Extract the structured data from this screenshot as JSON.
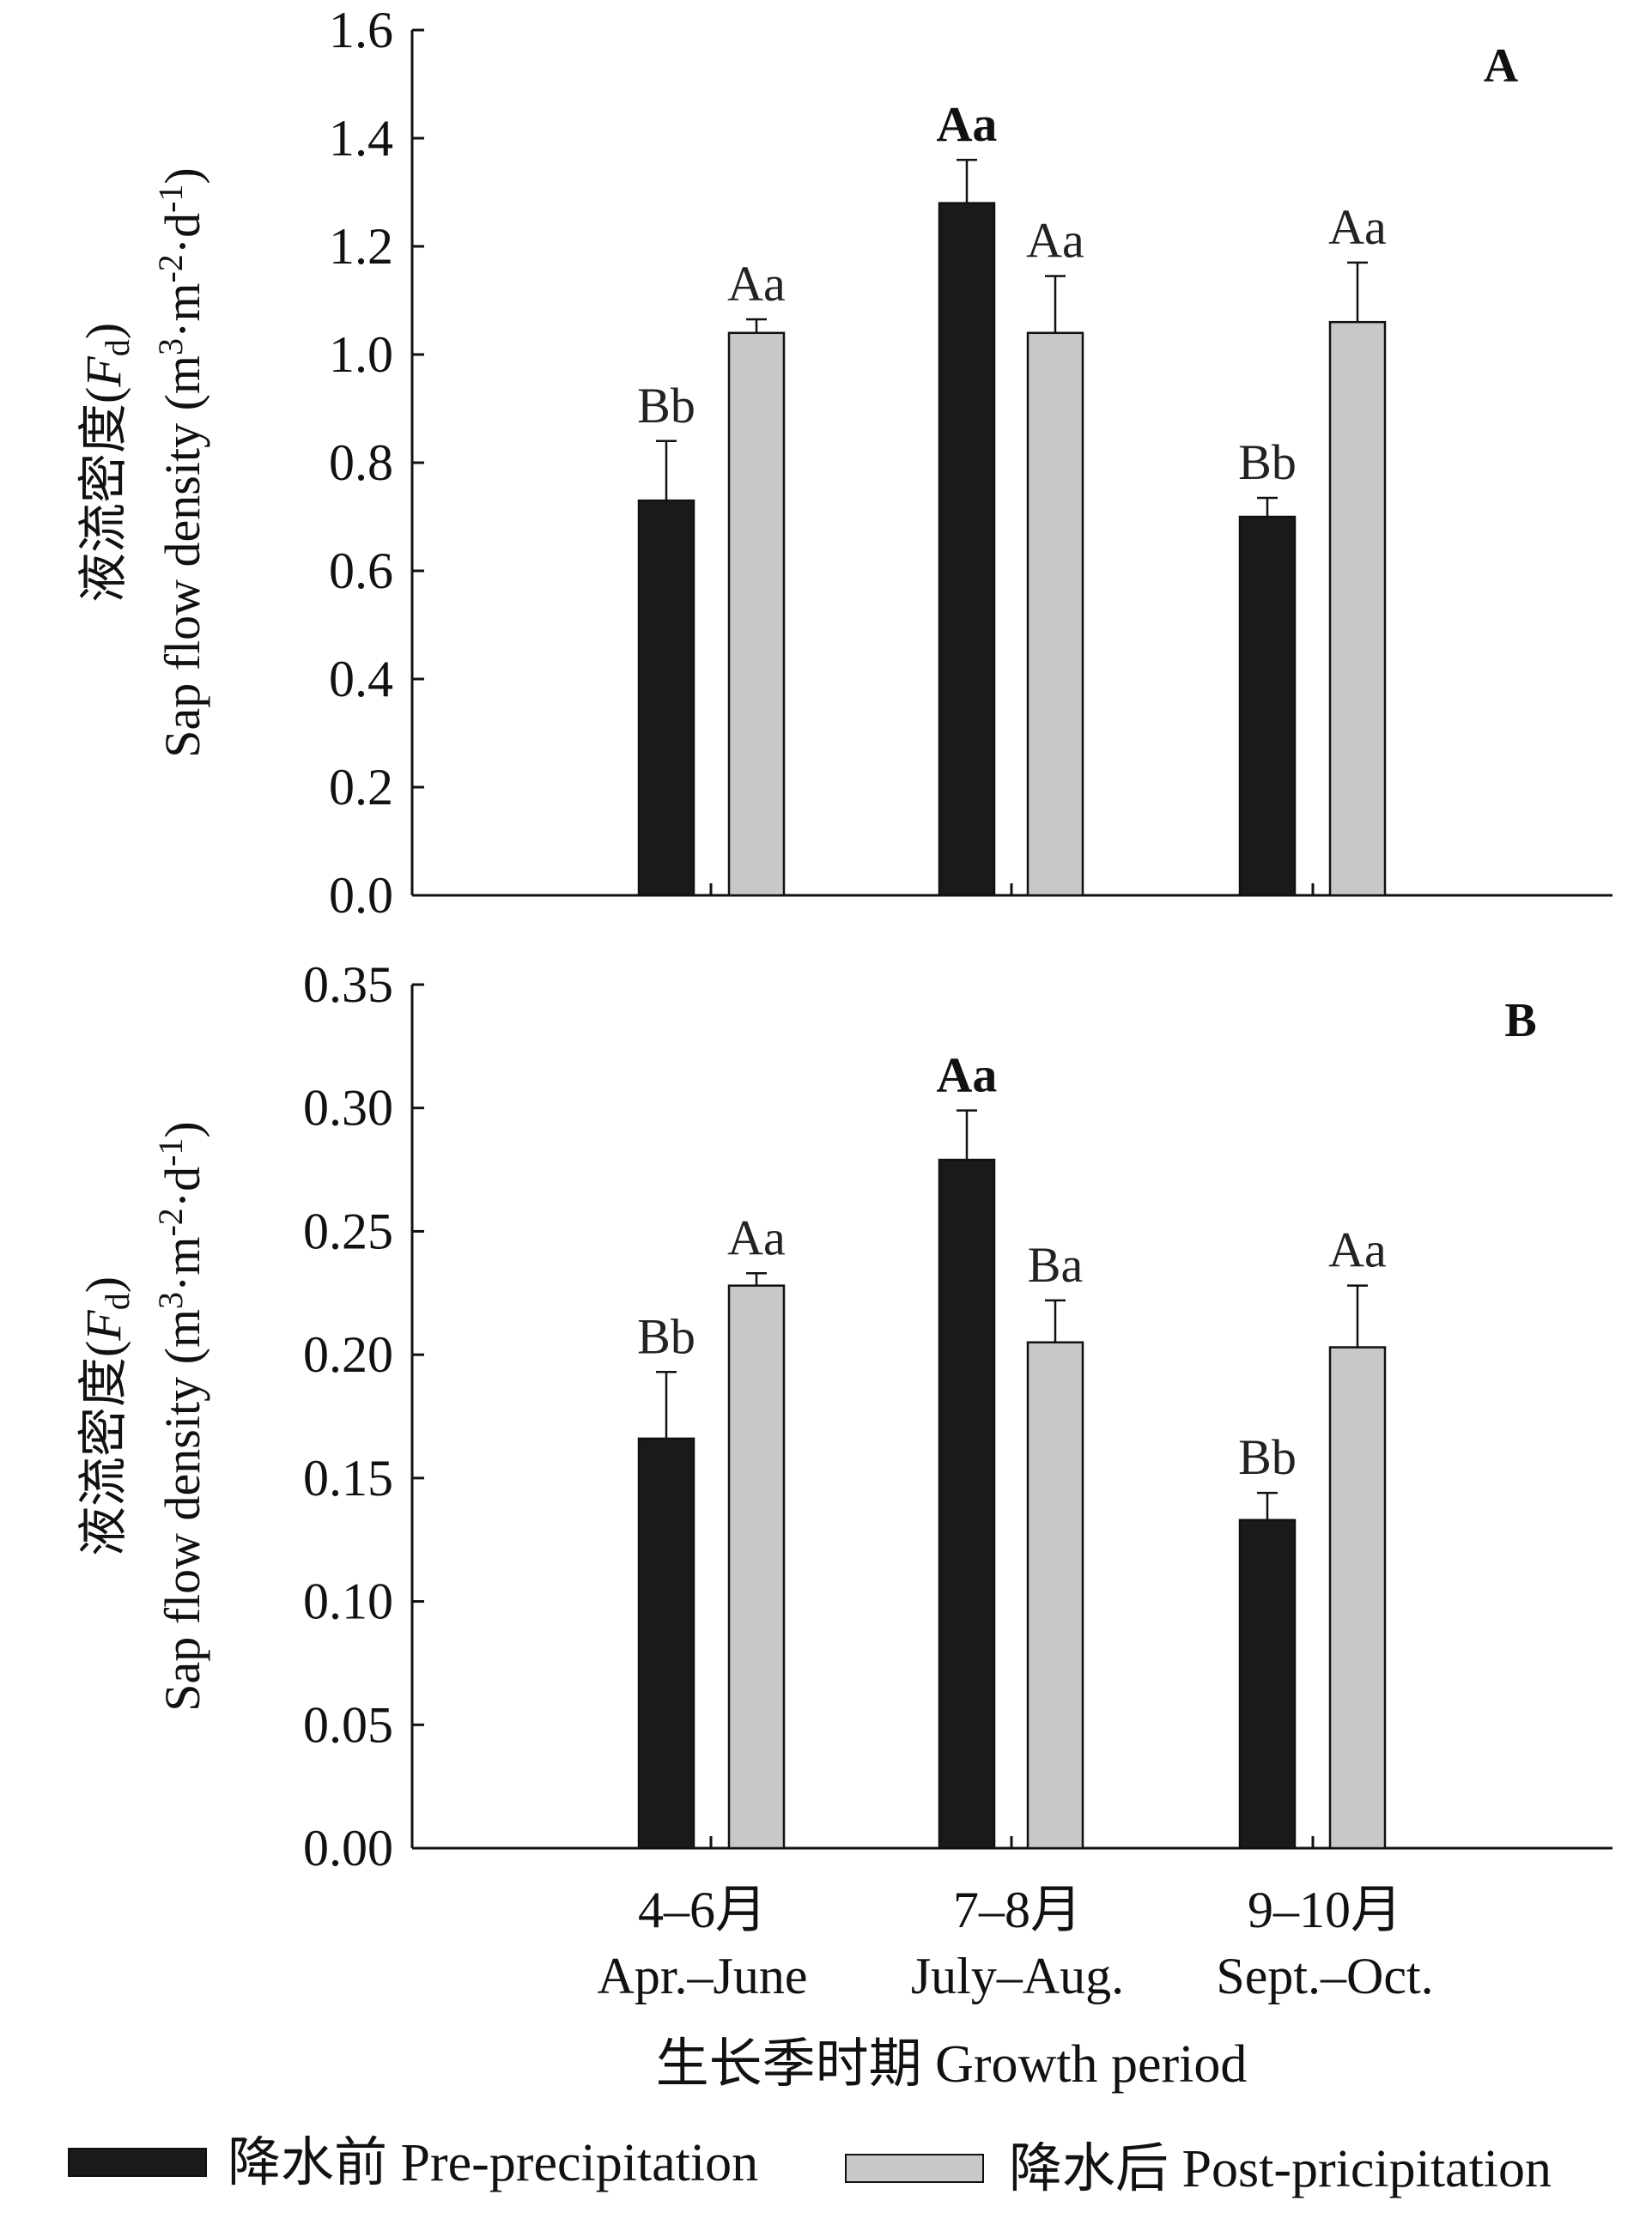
{
  "chart_data": [
    {
      "type": "bar",
      "panel": "A",
      "ylabel_cn": "液流密度(",
      "ylabel_en": "Sap flow density (m",
      "ylabel_var": "F",
      "ylabel_sub": "d",
      "ylabel_close": ")",
      "ylabel_unit_mid": "·m",
      "ylabel_unit_exp1": "3",
      "ylabel_unit_exp2": "-2",
      "ylabel_unit_tail": "·d",
      "ylabel_unit_exp3": "-1",
      "ylabel_unit_close": ")",
      "ylim": [
        0,
        1.6
      ],
      "yticks": [
        "0.0",
        "0.2",
        "0.4",
        "0.6",
        "0.8",
        "1.0",
        "1.2",
        "1.4",
        "1.6"
      ],
      "yticks_values": [
        0,
        0.2,
        0.4,
        0.6,
        0.8,
        1.0,
        1.2,
        1.4,
        1.6
      ],
      "categories": [
        "4–6月 Apr.–June",
        "7–8月 July–Aug.",
        "9–10月 Sept.–Oct."
      ],
      "series": [
        {
          "name": "降水前 Pre-precipitation",
          "values": [
            0.73,
            1.28,
            0.7
          ],
          "errors": [
            0.11,
            0.08,
            0.035
          ],
          "labels": [
            "Bb",
            "Aa",
            "Bb"
          ],
          "bold": [
            false,
            true,
            false
          ]
        },
        {
          "name": "降水后 Post-pricipitation",
          "values": [
            1.04,
            1.04,
            1.06
          ],
          "errors": [
            0.025,
            0.105,
            0.11
          ],
          "labels": [
            "Aa",
            "Aa",
            "Aa"
          ],
          "bold": [
            false,
            false,
            false
          ]
        }
      ],
      "grid": false
    },
    {
      "type": "bar",
      "panel": "B",
      "ylabel_cn": "液流密度(",
      "ylabel_en": "Sap flow density (m",
      "ylabel_var": "F",
      "ylabel_sub": "d",
      "ylabel_close": ")",
      "ylabel_unit_mid": "·m",
      "ylabel_unit_exp1": "3",
      "ylabel_unit_exp2": "-2",
      "ylabel_unit_tail": "·d",
      "ylabel_unit_exp3": "-1",
      "ylabel_unit_close": ")",
      "ylim": [
        0,
        0.35
      ],
      "yticks": [
        "0.00",
        "0.05",
        "0.10",
        "0.15",
        "0.20",
        "0.25",
        "0.30",
        "0.35"
      ],
      "yticks_values": [
        0,
        0.05,
        0.1,
        0.15,
        0.2,
        0.25,
        0.3,
        0.35
      ],
      "categories": [
        "4–6月 Apr.–June",
        "7–8月 July–Aug.",
        "9–10月 Sept.–Oct."
      ],
      "series": [
        {
          "name": "降水前 Pre-precipitation",
          "values": [
            0.166,
            0.279,
            0.133
          ],
          "errors": [
            0.027,
            0.02,
            0.011
          ],
          "labels": [
            "Bb",
            "Aa",
            "Bb"
          ],
          "bold": [
            false,
            true,
            false
          ]
        },
        {
          "name": "降水后 Post-pricipitation",
          "values": [
            0.228,
            0.205,
            0.203
          ],
          "errors": [
            0.005,
            0.017,
            0.025
          ],
          "labels": [
            "Aa",
            "Ba",
            "Aa"
          ],
          "bold": [
            false,
            false,
            false
          ]
        }
      ],
      "grid": false
    }
  ],
  "xaxis": {
    "categories_cn": [
      "4–6月",
      "7–8月",
      "9–10月"
    ],
    "categories_en": [
      "Apr.–June",
      "July–Aug.",
      "Sept.–Oct."
    ],
    "title": "生长季时期 Growth period"
  },
  "legend": {
    "items": [
      {
        "label": "降水前 Pre-precipitation",
        "color": "#1a1a1a"
      },
      {
        "label": "降水后 Post-pricipitation",
        "color": "#c8c8c8"
      }
    ],
    "placement": "bottom"
  },
  "colors": {
    "pre": "#1a1a1a",
    "post": "#c8c8c8",
    "axis": "#111111"
  }
}
